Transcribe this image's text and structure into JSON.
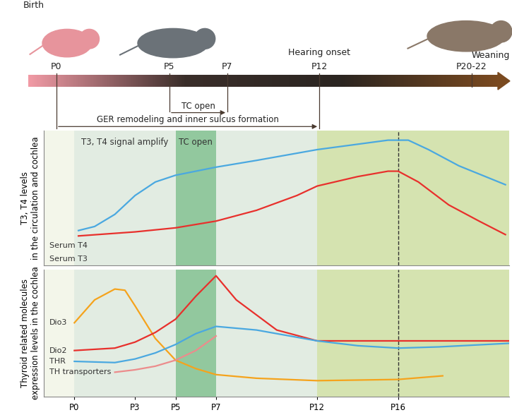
{
  "timeline": {
    "events": [
      {
        "label": "P0",
        "note": "Birth"
      },
      {
        "label": "P5"
      },
      {
        "label": "P7"
      },
      {
        "label": "P12",
        "note": "Hearing onset"
      },
      {
        "label": "P20-22",
        "note": "Weaning"
      }
    ],
    "spans": [
      {
        "label": "TC open",
        "from": "P5",
        "to": "P7"
      },
      {
        "label": "GER remodeling and inner sulcus formation",
        "from": "P0",
        "to": "P12"
      }
    ]
  },
  "chart_data": [
    {
      "type": "line",
      "y_label": "T3, T4 levels\nin the circulation and cochlea",
      "xlim": [
        -1.5,
        21.5
      ],
      "ylim": [
        0,
        100
      ],
      "yticks": [],
      "tick_labels": false,
      "vline": 16,
      "bands": [
        {
          "start": -1.5,
          "end": 0,
          "color": "#f3f6ea"
        },
        {
          "start": 0,
          "end": 5,
          "color": "#e2ece2",
          "label": "T3, T4 signal amplify"
        },
        {
          "start": 5,
          "end": 7,
          "color": "#92c89e",
          "label": "TC open"
        },
        {
          "start": 7,
          "end": 12,
          "color": "#e2ece2"
        },
        {
          "start": 12,
          "end": 21.5,
          "color": "#d5e3b0"
        }
      ],
      "series": [
        {
          "name": "Serum T4",
          "color": "#4aa8e0",
          "x": [
            0.2,
            1,
            2,
            3,
            4,
            5,
            7,
            9,
            12,
            14,
            15.5,
            16.5,
            17.5,
            19,
            21.3
          ],
          "values": [
            26,
            29,
            38,
            52,
            62,
            67,
            73,
            78,
            86,
            90,
            93,
            93,
            86,
            74,
            60
          ]
        },
        {
          "name": "Serum T3",
          "color": "#e8302c",
          "x": [
            0.2,
            3,
            5,
            7,
            9,
            11,
            12,
            14,
            15.5,
            16,
            17,
            18.5,
            20,
            21.3
          ],
          "values": [
            22,
            25,
            28,
            33,
            41,
            52,
            59,
            66,
            70,
            70,
            62,
            45,
            33,
            23
          ]
        }
      ]
    },
    {
      "type": "line",
      "y_label": "Thyroid related molecules\nexpression levels in the cochlea",
      "xlim": [
        -1.5,
        21.5
      ],
      "ylim": [
        0,
        105
      ],
      "yticks": [],
      "xticks": [
        {
          "value": 0,
          "label": "P0"
        },
        {
          "value": 3,
          "label": "P3"
        },
        {
          "value": 5,
          "label": "P5"
        },
        {
          "value": 7,
          "label": "P7"
        },
        {
          "value": 12,
          "label": "P12"
        },
        {
          "value": 16,
          "label": "P16"
        }
      ],
      "tick_labels": "x",
      "vline": 16,
      "bands": [
        {
          "start": -1.5,
          "end": 0,
          "color": "#f3f6ea"
        },
        {
          "start": 0,
          "end": 5,
          "color": "#e2ece2"
        },
        {
          "start": 5,
          "end": 7,
          "color": "#92c89e"
        },
        {
          "start": 7,
          "end": 12,
          "color": "#e2ece2"
        },
        {
          "start": 12,
          "end": 21.5,
          "color": "#d5e3b0"
        }
      ],
      "series": [
        {
          "name": "Dio3",
          "color": "#f5a31c",
          "x": [
            0,
            1,
            2,
            2.5,
            3,
            4,
            5,
            6,
            7,
            9,
            12,
            16,
            18.2
          ],
          "values": [
            61,
            80,
            89,
            88,
            75,
            48,
            30,
            23,
            18,
            15,
            13,
            14,
            17
          ]
        },
        {
          "name": "Dio2",
          "color": "#e8302c",
          "x": [
            0,
            2,
            3,
            4,
            5,
            6,
            7,
            8,
            10,
            12,
            16,
            21.5
          ],
          "values": [
            38,
            40,
            45,
            53,
            64,
            83,
            100,
            80,
            55,
            46,
            46,
            46
          ]
        },
        {
          "name": "THR",
          "color": "#4aa8e0",
          "x": [
            0,
            2,
            3,
            4,
            5,
            6,
            7,
            9,
            12,
            14,
            16,
            18,
            21.5
          ],
          "values": [
            29,
            28,
            31,
            36,
            43,
            52,
            58,
            55,
            46,
            42,
            40,
            41,
            44
          ]
        },
        {
          "name": "TH transporters",
          "color": "#ec8c8c",
          "x": [
            2,
            3,
            4,
            5,
            6,
            7
          ],
          "values": [
            20,
            22,
            25,
            30,
            38,
            50
          ]
        }
      ]
    }
  ]
}
